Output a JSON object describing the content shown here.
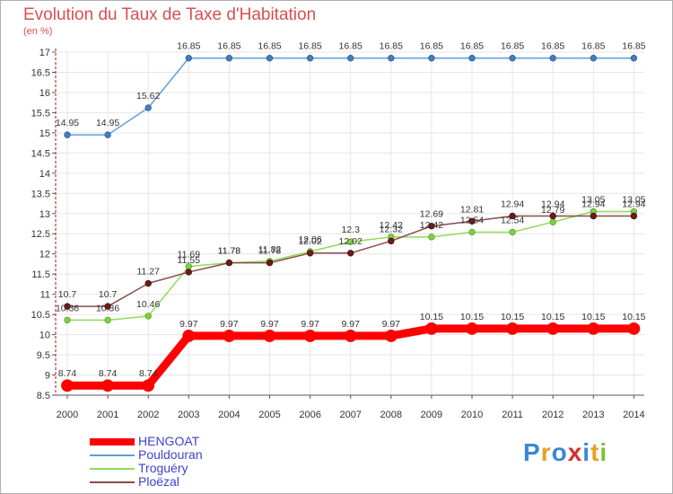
{
  "chart_data": {
    "type": "line",
    "title": "Evolution du Taux de Taxe d'Habitation",
    "unit_label": "(en %)",
    "x": [
      "2000",
      "2001",
      "2002",
      "2003",
      "2004",
      "2005",
      "2006",
      "2007",
      "2008",
      "2009",
      "2010",
      "2011",
      "2012",
      "2013",
      "2014"
    ],
    "ylim": [
      8.5,
      17
    ],
    "yticks": [
      "8.5",
      "9",
      "9.5",
      "10",
      "10.5",
      "11",
      "11.5",
      "12",
      "12.5",
      "13",
      "13.5",
      "14",
      "14.5",
      "15",
      "15.5",
      "16",
      "16.5",
      "17"
    ],
    "series": [
      {
        "name": "HENGOAT",
        "color": "#ff0000",
        "values": [
          8.74,
          8.74,
          8.74,
          9.97,
          9.97,
          9.97,
          9.97,
          9.97,
          9.97,
          10.15,
          10.15,
          10.15,
          10.15,
          10.15,
          10.15
        ],
        "labels": [
          "8.74",
          "8.74",
          "8.74",
          "9.97",
          "9.97",
          "9.97",
          "9.97",
          "9.97",
          "9.97",
          "10.15",
          "10.15",
          "10.15",
          "10.15",
          "10.15",
          "10.15"
        ]
      },
      {
        "name": "Pouldouran",
        "color": "#5f9fd8",
        "values": [
          14.95,
          14.95,
          15.62,
          16.85,
          16.85,
          16.85,
          16.85,
          16.85,
          16.85,
          16.85,
          16.85,
          16.85,
          16.85,
          16.85,
          16.85
        ],
        "labels": [
          "14.95",
          "14.95",
          "15.62",
          "16.85",
          "16.85",
          "16.85",
          "16.85",
          "16.85",
          "16.85",
          "16.85",
          "16.85",
          "16.85",
          "16.85",
          "16.85",
          "16.85"
        ]
      },
      {
        "name": "Troguéry",
        "color": "#8fdc5a",
        "values": [
          10.36,
          10.36,
          10.46,
          11.69,
          11.78,
          11.82,
          12.06,
          12.3,
          12.42,
          12.42,
          12.54,
          12.54,
          12.79,
          13.05,
          13.05
        ],
        "labels": [
          "10.36",
          "10.36",
          "10.46",
          "11.69",
          "11.78",
          "11.82",
          "12.06",
          "12.3",
          "12.42",
          "12.42",
          "12.54",
          "12.54",
          "12.79",
          "13.05",
          "13.05"
        ]
      },
      {
        "name": "Ploëzal",
        "color": "#8b4a4a",
        "values": [
          10.7,
          10.7,
          11.27,
          11.55,
          11.78,
          11.78,
          12.02,
          12.02,
          12.32,
          12.69,
          12.81,
          12.94,
          12.94,
          12.94,
          12.94
        ],
        "labels": [
          "10.7",
          "10.7",
          "11.27",
          "11.55",
          "11.78",
          "11.78",
          "12.02",
          "12.02",
          "12.32",
          "12.69",
          "12.81",
          "12.94",
          "12.94",
          "12.94",
          "12.94"
        ]
      }
    ]
  },
  "branding": {
    "logo_text": "Proxiti"
  }
}
